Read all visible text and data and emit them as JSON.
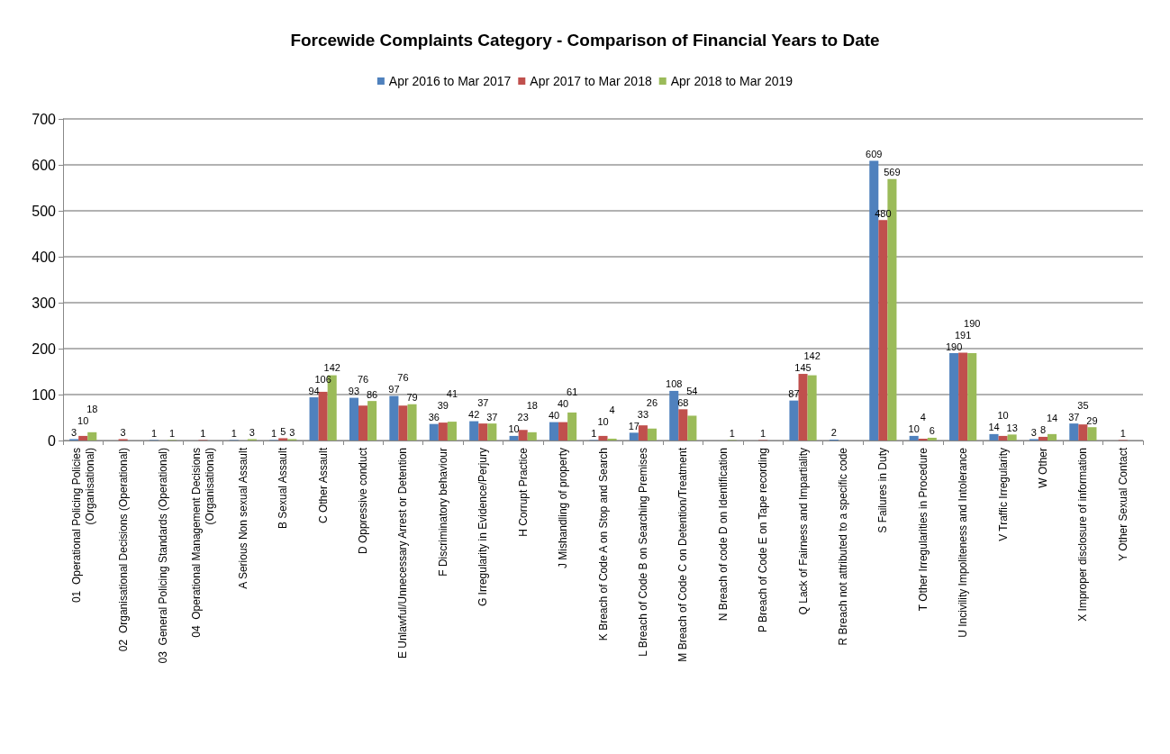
{
  "chart_data": {
    "type": "bar",
    "title": "Forcewide Complaints Category - Comparison of Financial Years to Date",
    "categories": [
      "01  Operational Policing Policies\n(Organisational)",
      "02  Organisational Decisions (Operational)",
      "03  General Policing Standards (Operational)",
      "04  Operational Management Decisions\n(Organisational)",
      "A Serious Non sexual Assault",
      "B Sexual Assault",
      "C Other Assault",
      "D Oppressive conduct",
      "E Unlawful/Unnecessary Arrest or Detention",
      "F Discriminatory behaviour",
      "G Irregularity in Evidence/Perjury",
      "H Corrupt Practice",
      "J Mishandling of property",
      "K Breach of Code A on Stop and Search",
      "L Breach of Code B on Searching Premises",
      "M Breach of Code C on Detention/Treatment",
      "N Breach of code D on Identification",
      "P Breach of Code E on Tape recording",
      "Q Lack of Fairness and Impartiality",
      "R Breach not attributed to a specific code",
      "S Failures in Duty",
      "T Other Irregularities in Procedure",
      "U Incivility Impoliteness and Intolerance",
      "V Traffic Irregularity",
      "W Other",
      "X Improper disclosure of information",
      "Y Other Sexual Contact"
    ],
    "series": [
      {
        "name": "Apr 2016 to Mar 2017",
        "color": "#4f81bd",
        "values": [
          3,
          null,
          1,
          null,
          1,
          1,
          94,
          93,
          97,
          36,
          42,
          10,
          40,
          1,
          17,
          108,
          null,
          null,
          87,
          2,
          609,
          10,
          190,
          14,
          3,
          37,
          null
        ]
      },
      {
        "name": "Apr 2017 to Mar 2018",
        "color": "#c0504d",
        "values": [
          10,
          3,
          null,
          1,
          null,
          5,
          106,
          76,
          76,
          39,
          37,
          23,
          40,
          10,
          33,
          68,
          null,
          1,
          145,
          null,
          480,
          4,
          191,
          10,
          8,
          35,
          1
        ]
      },
      {
        "name": "Apr 2018 to Mar 2019",
        "color": "#9bbb59",
        "values": [
          18,
          null,
          1,
          null,
          3,
          3,
          142,
          86,
          79,
          41,
          37,
          18,
          61,
          4,
          26,
          54,
          1,
          null,
          142,
          null,
          569,
          6,
          190,
          13,
          14,
          29,
          null
        ]
      }
    ],
    "ylim": [
      0,
      700
    ],
    "yticks": [
      0,
      100,
      200,
      300,
      400,
      500,
      600,
      700
    ],
    "grid": "y",
    "legend": "top",
    "data_labels": true
  }
}
